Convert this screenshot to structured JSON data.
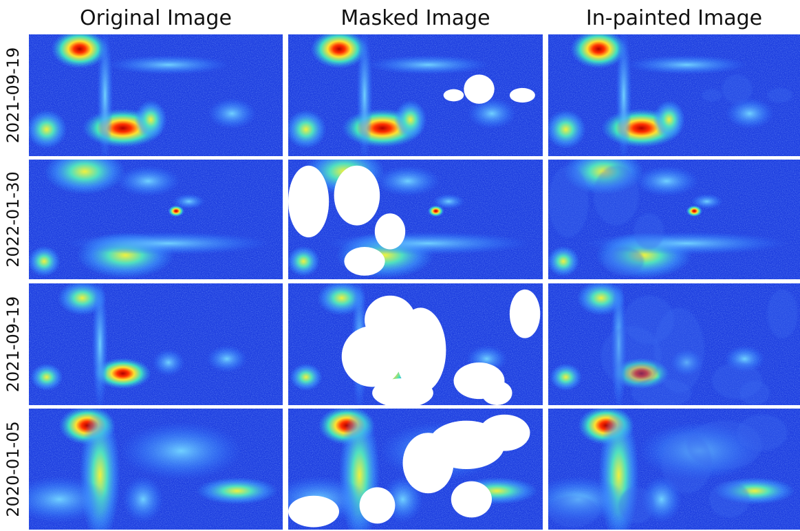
{
  "columns": [
    "Original Image",
    "Masked Image",
    "In-painted Image"
  ],
  "rows": [
    {
      "label": "2021-09-19"
    },
    {
      "label": "2022-01-30"
    },
    {
      "label": "2021-09-19"
    },
    {
      "label": "2020-01-05"
    }
  ]
}
